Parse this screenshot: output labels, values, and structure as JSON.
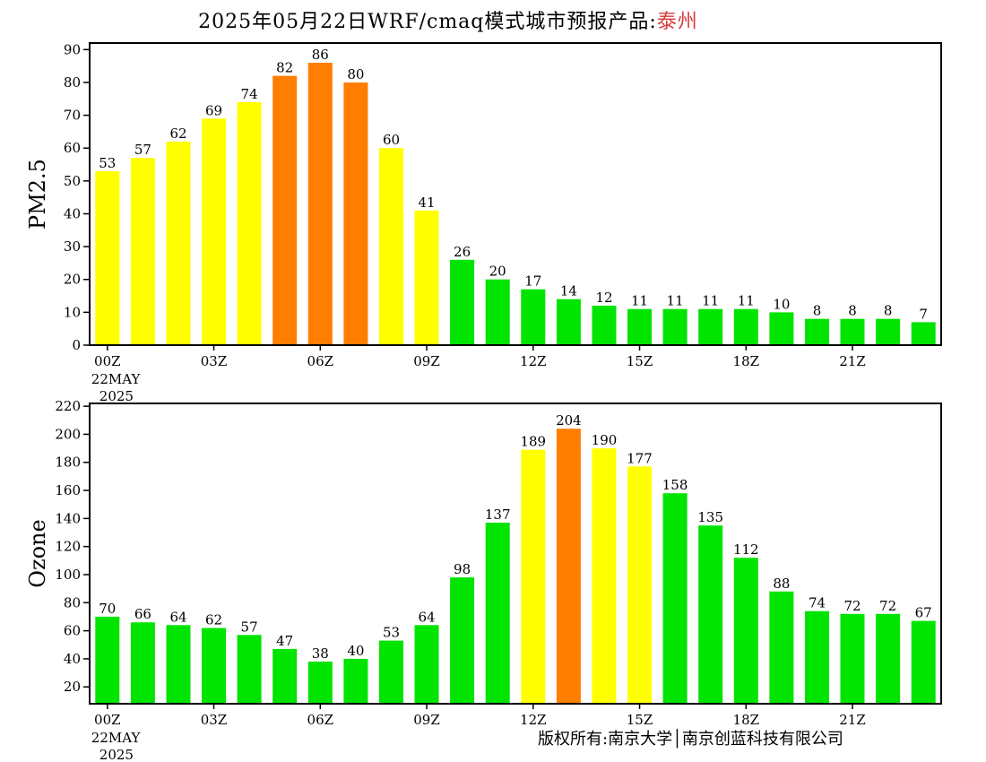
{
  "header": {
    "title_prefix": "2025年05月22日WRF/cmaq模式城市预报产品:",
    "city": "泰州"
  },
  "footer": {
    "credit": "版权所有:南京大学│南京创蓝科技有限公司"
  },
  "colors": {
    "good": "#00e400",
    "moderate": "#ffff00",
    "usg": "#ff7e00",
    "axis": "#000000"
  },
  "chart_data": [
    {
      "type": "bar",
      "ylabel": "PM2.5",
      "ylim": [
        0,
        92
      ],
      "yticks": [
        0,
        10,
        20,
        30,
        40,
        50,
        60,
        70,
        80,
        90
      ],
      "x_tick_labels": [
        {
          "hour": 0,
          "label": "00Z",
          "sub1": "22MAY",
          "sub2": "2025"
        },
        {
          "hour": 3,
          "label": "03Z"
        },
        {
          "hour": 6,
          "label": "06Z"
        },
        {
          "hour": 9,
          "label": "09Z"
        },
        {
          "hour": 12,
          "label": "12Z"
        },
        {
          "hour": 15,
          "label": "15Z"
        },
        {
          "hour": 18,
          "label": "18Z"
        },
        {
          "hour": 21,
          "label": "21Z"
        }
      ],
      "values": [
        53,
        57,
        62,
        69,
        74,
        82,
        86,
        80,
        60,
        41,
        26,
        20,
        17,
        14,
        12,
        11,
        11,
        11,
        11,
        10,
        8,
        8,
        8,
        7
      ],
      "bar_colors": [
        "moderate",
        "moderate",
        "moderate",
        "moderate",
        "moderate",
        "usg",
        "usg",
        "usg",
        "moderate",
        "moderate",
        "good",
        "good",
        "good",
        "good",
        "good",
        "good",
        "good",
        "good",
        "good",
        "good",
        "good",
        "good",
        "good",
        "good"
      ]
    },
    {
      "type": "bar",
      "ylabel": "Ozone",
      "ylim": [
        8,
        222
      ],
      "yticks": [
        20,
        40,
        60,
        80,
        100,
        120,
        140,
        160,
        180,
        200,
        220
      ],
      "x_tick_labels": [
        {
          "hour": 0,
          "label": "00Z",
          "sub1": "22MAY",
          "sub2": "2025"
        },
        {
          "hour": 3,
          "label": "03Z"
        },
        {
          "hour": 6,
          "label": "06Z"
        },
        {
          "hour": 9,
          "label": "09Z"
        },
        {
          "hour": 12,
          "label": "12Z"
        },
        {
          "hour": 15,
          "label": "15Z"
        },
        {
          "hour": 18,
          "label": "18Z"
        },
        {
          "hour": 21,
          "label": "21Z"
        }
      ],
      "values": [
        70,
        66,
        64,
        62,
        57,
        47,
        38,
        40,
        53,
        64,
        98,
        137,
        189,
        204,
        190,
        177,
        158,
        135,
        112,
        88,
        74,
        72,
        72,
        67
      ],
      "bar_colors": [
        "good",
        "good",
        "good",
        "good",
        "good",
        "good",
        "good",
        "good",
        "good",
        "good",
        "good",
        "good",
        "moderate",
        "usg",
        "moderate",
        "moderate",
        "good",
        "good",
        "good",
        "good",
        "good",
        "good",
        "good",
        "good"
      ]
    }
  ]
}
